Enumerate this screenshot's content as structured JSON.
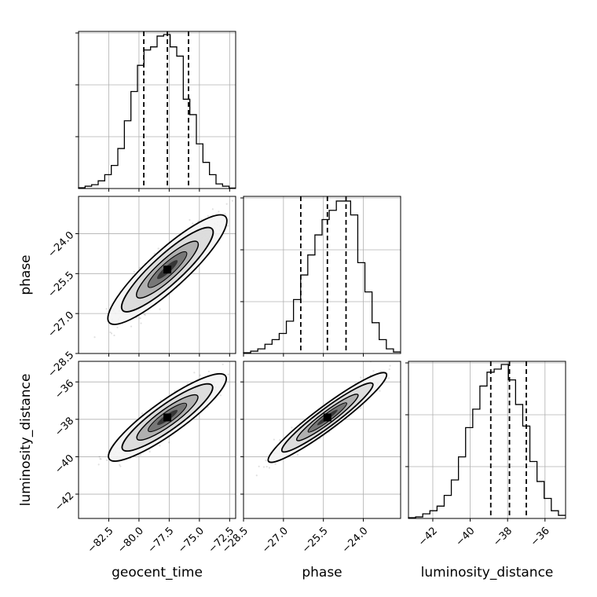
{
  "chart_data": {
    "type": "corner",
    "parameters": [
      "geocent_time",
      "phase",
      "luminosity_distance"
    ],
    "axis_labels": {
      "x": [
        "geocent_time",
        "phase",
        "luminosity_distance"
      ],
      "y": [
        "phase",
        "luminosity_distance"
      ]
    },
    "ranges": {
      "geocent_time": [
        -85.0,
        -72.0
      ],
      "phase": [
        -28.5,
        -22.6
      ],
      "luminosity_distance": [
        -43.3,
        -34.9
      ]
    },
    "ticks": {
      "geocent_time": [
        -82.5,
        -80.0,
        -77.5,
        -75.0,
        -72.5
      ],
      "phase": [
        -28.5,
        -27.0,
        -25.5,
        -24.0
      ],
      "luminosity_distance": [
        -42,
        -40,
        -38,
        -36
      ]
    },
    "tick_labels": {
      "geocent_time": [
        "−82.5",
        "−80.0",
        "−77.5",
        "−75.0",
        "−72.5"
      ],
      "phase": [
        "−28.5",
        "−27.0",
        "−25.5",
        "−24.0"
      ],
      "luminosity_distance": [
        "−42",
        "−40",
        "−38",
        "−36"
      ]
    },
    "quantiles": {
      "geocent_time": [
        -79.6,
        -77.65,
        -75.9
      ],
      "phase": [
        -26.35,
        -25.35,
        -24.65
      ],
      "luminosity_distance": [
        -38.9,
        -37.9,
        -37.0
      ]
    },
    "histograms": {
      "geocent_time": [
        0.005,
        0.015,
        0.025,
        0.05,
        0.09,
        0.15,
        0.26,
        0.44,
        0.63,
        0.8,
        0.9,
        0.92,
        0.99,
        1.0,
        0.92,
        0.86,
        0.58,
        0.48,
        0.29,
        0.17,
        0.09,
        0.03,
        0.015,
        0.003
      ],
      "phase": [
        0.005,
        0.015,
        0.03,
        0.06,
        0.09,
        0.13,
        0.21,
        0.35,
        0.51,
        0.64,
        0.77,
        0.87,
        0.93,
        0.99,
        0.99,
        0.9,
        0.59,
        0.4,
        0.2,
        0.09,
        0.03,
        0.01
      ],
      "luminosity_distance": [
        0.005,
        0.01,
        0.03,
        0.05,
        0.08,
        0.15,
        0.25,
        0.4,
        0.59,
        0.71,
        0.86,
        0.95,
        0.97,
        1.0,
        0.9,
        0.74,
        0.6,
        0.37,
        0.24,
        0.13,
        0.05,
        0.02
      ]
    },
    "correlations": {
      "phase|geocent_time": 0.9,
      "luminosity_distance|geocent_time": 0.9,
      "luminosity_distance|phase": 0.95
    },
    "grid": true
  }
}
